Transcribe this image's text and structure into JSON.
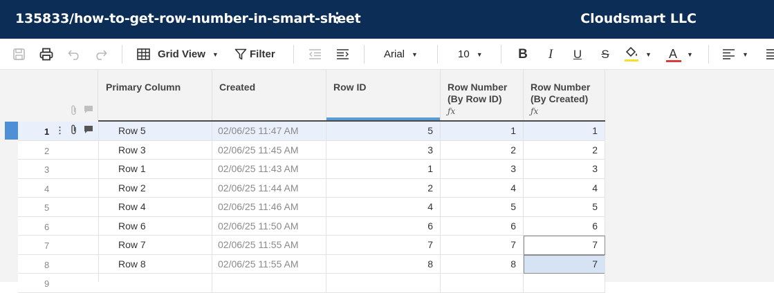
{
  "titlebar": {
    "sheet_title": "135833/how-to-get-row-number-in-smart-sheet",
    "menu_glyph": "⋮",
    "org_name": "Cloudsmart LLC"
  },
  "toolbar": {
    "view_label": "Grid View",
    "filter_label": "Filter",
    "font_family": "Arial",
    "font_size": "10",
    "bold_glyph": "B",
    "italic_glyph": "I",
    "underline_glyph": "U",
    "strike_glyph": "S",
    "textcolor_glyph": "A",
    "fill_color_accent": "#f5e027",
    "text_color_accent": "#d93a3a"
  },
  "columns": [
    {
      "title": "Primary Column"
    },
    {
      "title": "Created"
    },
    {
      "title": "Row ID"
    },
    {
      "title": "Row Number\n(By Row ID)",
      "line1": "Row Number",
      "line2": "(By Row ID)",
      "formula": "ƒx"
    },
    {
      "title": "Row Number\n(By Created)",
      "line1": "Row Number",
      "line2": "(By Created)",
      "formula": "ƒx"
    }
  ],
  "rows": [
    {
      "num": "1",
      "primary": "Row 5",
      "created": "02/06/25 11:47 AM",
      "row_id": "5",
      "by_row_id": "1",
      "by_created": "1"
    },
    {
      "num": "2",
      "primary": "Row 3",
      "created": "02/06/25 11:45 AM",
      "row_id": "3",
      "by_row_id": "2",
      "by_created": "2"
    },
    {
      "num": "3",
      "primary": "Row 1",
      "created": "02/06/25 11:43 AM",
      "row_id": "1",
      "by_row_id": "3",
      "by_created": "3"
    },
    {
      "num": "4",
      "primary": "Row 2",
      "created": "02/06/25 11:44 AM",
      "row_id": "2",
      "by_row_id": "4",
      "by_created": "4"
    },
    {
      "num": "5",
      "primary": "Row 4",
      "created": "02/06/25 11:46 AM",
      "row_id": "4",
      "by_row_id": "5",
      "by_created": "5"
    },
    {
      "num": "6",
      "primary": "Row 6",
      "created": "02/06/25 11:50 AM",
      "row_id": "6",
      "by_row_id": "6",
      "by_created": "6"
    },
    {
      "num": "7",
      "primary": "Row 7",
      "created": "02/06/25 11:55 AM",
      "row_id": "7",
      "by_row_id": "7",
      "by_created": "7"
    },
    {
      "num": "8",
      "primary": "Row 8",
      "created": "02/06/25 11:55 AM",
      "row_id": "8",
      "by_row_id": "8",
      "by_created": "7"
    },
    {
      "num": "9",
      "primary": "",
      "created": "",
      "row_id": "",
      "by_row_id": "",
      "by_created": ""
    }
  ],
  "icons": {
    "save": "save-icon",
    "print": "print-icon",
    "undo": "undo-icon",
    "redo": "redo-icon",
    "grid": "grid-view-icon",
    "filter": "filter-icon",
    "outdent": "outdent-icon",
    "indent": "indent-icon",
    "fill": "fill-color-icon",
    "align": "align-left-icon",
    "attach": "attachment-icon",
    "comment": "comment-icon"
  }
}
